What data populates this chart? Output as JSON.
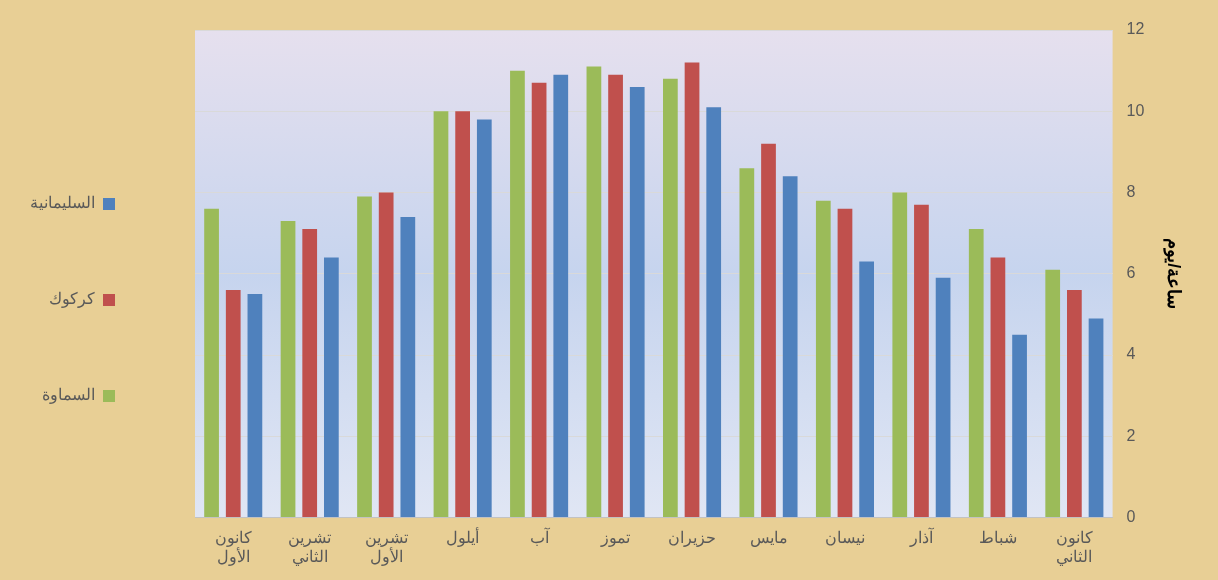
{
  "chart_data": {
    "type": "bar",
    "ylabel": "ساعة/يوم",
    "categories": [
      "كانون الأول",
      "تشرين الثاني",
      "تشرين الأول",
      "أيلول",
      "آب",
      "تموز",
      "حزيران",
      "مايس",
      "نيسان",
      "آذار",
      "شباط",
      "كانون الثاني"
    ],
    "series": [
      {
        "name": "السماوة",
        "color": "#9bbb59",
        "values": [
          7.6,
          7.3,
          7.9,
          10,
          11,
          11.1,
          10.8,
          8.6,
          7.8,
          8,
          7.1,
          6.1
        ]
      },
      {
        "name": "كركوك",
        "color": "#c0504d",
        "values": [
          5.6,
          7.1,
          8,
          10,
          10.7,
          10.9,
          11.2,
          9.2,
          7.6,
          7.7,
          6.4,
          5.6
        ]
      },
      {
        "name": "السليمانية",
        "color": "#4f81bd",
        "values": [
          5.5,
          6.4,
          7.4,
          9.8,
          10.9,
          10.6,
          10.1,
          8.4,
          6.3,
          5.9,
          4.5,
          4.9
        ]
      }
    ],
    "ylim": [
      0,
      12
    ],
    "yticks": [
      0,
      2,
      4,
      6,
      8,
      10,
      12
    ],
    "grid": "y",
    "legend": "left"
  }
}
